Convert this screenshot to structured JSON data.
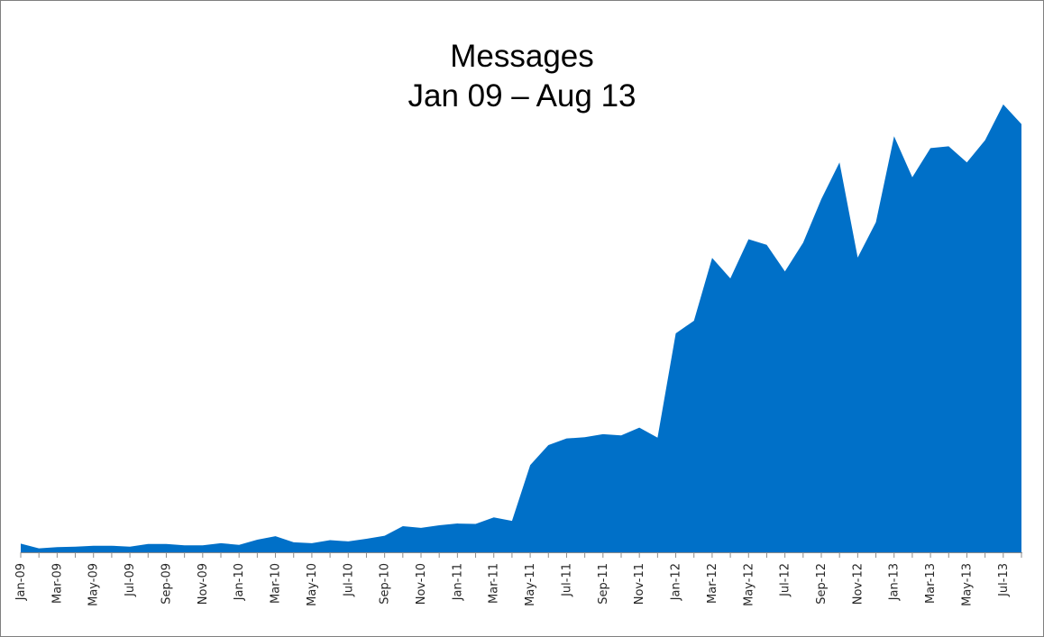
{
  "chart_data": {
    "type": "area",
    "title": "Messages",
    "subtitle": "Jan 09 – Aug 13",
    "xlabel": "",
    "ylabel": "",
    "ylim": [
      0,
      100
    ],
    "grid": false,
    "legend": "none",
    "color": "#0070c8",
    "tick_labels": [
      "Jan-09",
      "Mar-09",
      "May-09",
      "Jul-09",
      "Sep-09",
      "Nov-09",
      "Jan-10",
      "Mar-10",
      "May-10",
      "Jul-10",
      "Sep-10",
      "Nov-10",
      "Jan-11",
      "Mar-11",
      "May-11",
      "Jul-11",
      "Sep-11",
      "Nov-11",
      "Jan-12",
      "Mar-12",
      "May-12",
      "Jul-12",
      "Sep-12",
      "Nov-12",
      "Jan-13",
      "Mar-13",
      "May-13",
      "Jul-13"
    ],
    "x": [
      "Jan-09",
      "Feb-09",
      "Mar-09",
      "Apr-09",
      "May-09",
      "Jun-09",
      "Jul-09",
      "Aug-09",
      "Sep-09",
      "Oct-09",
      "Nov-09",
      "Dec-09",
      "Jan-10",
      "Feb-10",
      "Mar-10",
      "Apr-10",
      "May-10",
      "Jun-10",
      "Jul-10",
      "Aug-10",
      "Sep-10",
      "Oct-10",
      "Nov-10",
      "Dec-10",
      "Jan-11",
      "Feb-11",
      "Mar-11",
      "Apr-11",
      "May-11",
      "Jun-11",
      "Jul-11",
      "Aug-11",
      "Sep-11",
      "Oct-11",
      "Nov-11",
      "Dec-11",
      "Jan-12",
      "Feb-12",
      "Mar-12",
      "Apr-12",
      "May-12",
      "Jun-12",
      "Jul-12",
      "Aug-12",
      "Sep-12",
      "Oct-12",
      "Nov-12",
      "Dec-12",
      "Jan-13",
      "Feb-13",
      "Mar-13",
      "Apr-13",
      "May-13",
      "Jun-13",
      "Jul-13",
      "Aug-13"
    ],
    "series": [
      {
        "values": [
          2.0,
          0.9,
          1.2,
          1.3,
          1.5,
          1.5,
          1.3,
          1.9,
          1.9,
          1.6,
          1.6,
          2.1,
          1.7,
          2.9,
          3.7,
          2.3,
          2.1,
          2.8,
          2.5,
          3.1,
          3.8,
          6.0,
          5.6,
          6.2,
          6.6,
          6.5,
          8.0,
          7.2,
          20.0,
          24.6,
          26.1,
          26.4,
          27.1,
          26.8,
          28.6,
          26.3,
          50.2,
          53.1,
          67.5,
          62.8,
          71.8,
          70.5,
          64.4,
          71.0,
          81.0,
          89.4,
          67.6,
          75.7,
          95.4,
          86.0,
          92.7,
          93.1,
          89.4,
          94.5,
          102.7,
          98.2
        ]
      }
    ]
  }
}
